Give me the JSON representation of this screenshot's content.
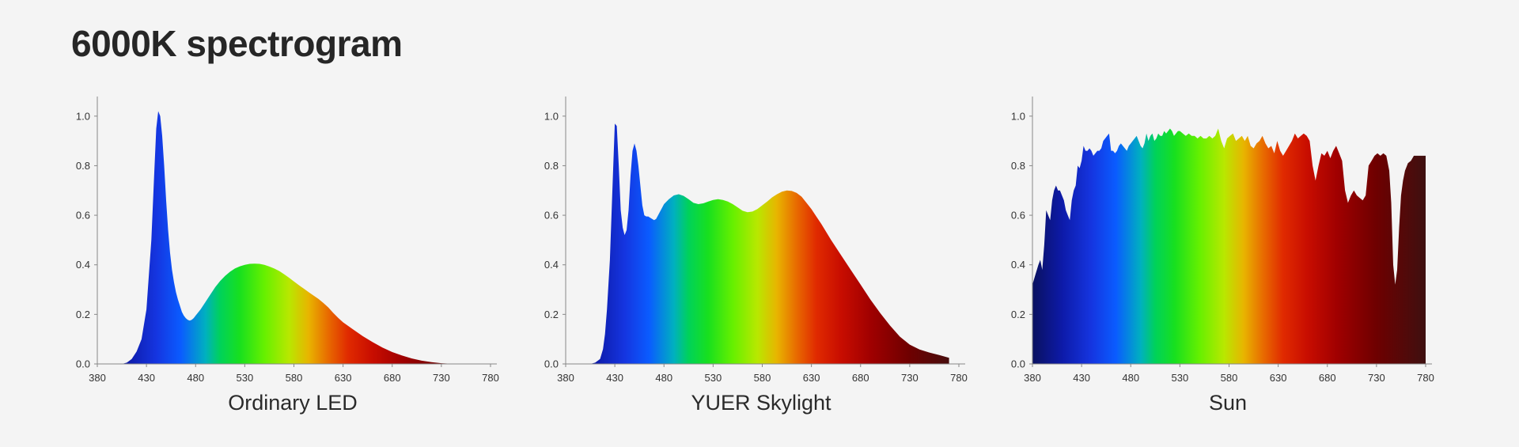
{
  "title": "6000K spectrogram",
  "chart_data": [
    {
      "type": "area",
      "title": "Ordinary LED",
      "xlabel": "",
      "ylabel": "",
      "xlim": [
        380,
        780
      ],
      "ylim": [
        0,
        1.06
      ],
      "xticks": [
        380,
        430,
        480,
        530,
        580,
        630,
        680,
        730,
        780
      ],
      "yticks": [
        0.0,
        0.2,
        0.4,
        0.6,
        0.8,
        1.0
      ],
      "legend": "none",
      "grid": false,
      "x": [
        380,
        405,
        410,
        415,
        420,
        425,
        430,
        435,
        438,
        440,
        442,
        444,
        446,
        448,
        450,
        452,
        454,
        456,
        458,
        460,
        462,
        464,
        466,
        468,
        470,
        472,
        474,
        476,
        478,
        480,
        485,
        490,
        495,
        500,
        505,
        510,
        515,
        520,
        525,
        530,
        535,
        540,
        545,
        550,
        555,
        560,
        565,
        570,
        575,
        580,
        585,
        590,
        595,
        600,
        605,
        610,
        615,
        620,
        625,
        630,
        640,
        650,
        660,
        670,
        680,
        690,
        700,
        710,
        720,
        730,
        740,
        750
      ],
      "y": [
        0,
        0,
        0.005,
        0.02,
        0.05,
        0.1,
        0.22,
        0.5,
        0.78,
        0.95,
        1.02,
        1.0,
        0.92,
        0.8,
        0.66,
        0.54,
        0.45,
        0.38,
        0.33,
        0.29,
        0.26,
        0.235,
        0.21,
        0.195,
        0.185,
        0.178,
        0.175,
        0.178,
        0.185,
        0.195,
        0.22,
        0.25,
        0.28,
        0.31,
        0.335,
        0.355,
        0.372,
        0.385,
        0.394,
        0.4,
        0.404,
        0.405,
        0.404,
        0.4,
        0.393,
        0.385,
        0.375,
        0.362,
        0.348,
        0.333,
        0.318,
        0.304,
        0.29,
        0.276,
        0.262,
        0.246,
        0.228,
        0.206,
        0.186,
        0.168,
        0.14,
        0.112,
        0.088,
        0.066,
        0.048,
        0.034,
        0.022,
        0.013,
        0.007,
        0.003,
        0.001,
        0
      ]
    },
    {
      "type": "area",
      "title": "YUER Skylight",
      "xlabel": "",
      "ylabel": "",
      "xlim": [
        380,
        780
      ],
      "ylim": [
        0,
        1.06
      ],
      "xticks": [
        380,
        430,
        480,
        530,
        580,
        630,
        680,
        730,
        780
      ],
      "yticks": [
        0.0,
        0.2,
        0.4,
        0.6,
        0.8,
        1.0
      ],
      "legend": "none",
      "grid": false,
      "x": [
        380,
        405,
        410,
        415,
        418,
        420,
        422,
        425,
        428,
        430,
        432,
        434,
        436,
        438,
        440,
        442,
        444,
        446,
        448,
        450,
        452,
        454,
        456,
        458,
        460,
        462,
        464,
        466,
        468,
        470,
        472,
        474,
        476,
        478,
        480,
        485,
        490,
        495,
        500,
        505,
        510,
        515,
        520,
        525,
        530,
        535,
        540,
        545,
        550,
        555,
        560,
        565,
        570,
        575,
        580,
        585,
        590,
        595,
        600,
        605,
        610,
        615,
        620,
        625,
        630,
        635,
        640,
        650,
        660,
        670,
        680,
        690,
        700,
        710,
        720,
        730,
        740,
        750,
        760,
        770
      ],
      "y": [
        0,
        0,
        0.005,
        0.02,
        0.06,
        0.12,
        0.22,
        0.42,
        0.75,
        0.97,
        0.96,
        0.8,
        0.62,
        0.55,
        0.52,
        0.54,
        0.62,
        0.76,
        0.86,
        0.89,
        0.86,
        0.8,
        0.72,
        0.64,
        0.6,
        0.595,
        0.595,
        0.59,
        0.585,
        0.58,
        0.585,
        0.6,
        0.615,
        0.63,
        0.645,
        0.665,
        0.68,
        0.685,
        0.678,
        0.665,
        0.65,
        0.645,
        0.648,
        0.655,
        0.662,
        0.665,
        0.662,
        0.655,
        0.645,
        0.632,
        0.618,
        0.612,
        0.615,
        0.625,
        0.64,
        0.655,
        0.672,
        0.685,
        0.695,
        0.7,
        0.698,
        0.69,
        0.675,
        0.65,
        0.625,
        0.595,
        0.565,
        0.5,
        0.44,
        0.38,
        0.32,
        0.26,
        0.205,
        0.155,
        0.11,
        0.078,
        0.058,
        0.046,
        0.036,
        0.025
      ]
    },
    {
      "type": "area",
      "title": "Sun",
      "xlabel": "",
      "ylabel": "",
      "xlim": [
        380,
        780
      ],
      "ylim": [
        0,
        1.06
      ],
      "xticks": [
        380,
        430,
        480,
        530,
        580,
        630,
        680,
        730,
        780
      ],
      "yticks": [
        0.0,
        0.2,
        0.4,
        0.6,
        0.8,
        1.0
      ],
      "legend": "none",
      "grid": false,
      "x": [
        380,
        383,
        386,
        388,
        390,
        392,
        394,
        396,
        398,
        400,
        402,
        404,
        406,
        408,
        410,
        412,
        414,
        416,
        418,
        420,
        422,
        424,
        426,
        428,
        430,
        432,
        434,
        436,
        438,
        440,
        442,
        444,
        446,
        448,
        450,
        452,
        454,
        456,
        458,
        460,
        462,
        464,
        466,
        468,
        470,
        472,
        474,
        476,
        478,
        480,
        482,
        484,
        486,
        488,
        490,
        492,
        494,
        496,
        498,
        500,
        502,
        504,
        506,
        508,
        510,
        512,
        514,
        516,
        518,
        520,
        522,
        524,
        526,
        528,
        530,
        533,
        536,
        539,
        542,
        545,
        548,
        551,
        554,
        557,
        560,
        563,
        566,
        569,
        572,
        575,
        578,
        581,
        584,
        587,
        590,
        593,
        596,
        599,
        602,
        605,
        608,
        611,
        614,
        617,
        620,
        623,
        626,
        629,
        632,
        635,
        638,
        641,
        644,
        647,
        650,
        653,
        656,
        659,
        662,
        665,
        668,
        671,
        674,
        677,
        680,
        683,
        686,
        689,
        692,
        695,
        698,
        701,
        704,
        707,
        710,
        713,
        716,
        719,
        722,
        725,
        728,
        731,
        734,
        737,
        740,
        743,
        745,
        747,
        749,
        751,
        753,
        755,
        757,
        759,
        762,
        765,
        768,
        771,
        774,
        777,
        780
      ],
      "y": [
        0.32,
        0.36,
        0.4,
        0.42,
        0.38,
        0.48,
        0.62,
        0.6,
        0.58,
        0.66,
        0.7,
        0.72,
        0.7,
        0.7,
        0.68,
        0.66,
        0.62,
        0.6,
        0.58,
        0.66,
        0.7,
        0.72,
        0.8,
        0.79,
        0.82,
        0.88,
        0.86,
        0.86,
        0.87,
        0.86,
        0.84,
        0.85,
        0.86,
        0.86,
        0.87,
        0.9,
        0.91,
        0.92,
        0.93,
        0.86,
        0.86,
        0.85,
        0.86,
        0.88,
        0.89,
        0.88,
        0.87,
        0.86,
        0.88,
        0.89,
        0.9,
        0.91,
        0.92,
        0.9,
        0.88,
        0.87,
        0.89,
        0.93,
        0.9,
        0.92,
        0.93,
        0.9,
        0.91,
        0.93,
        0.92,
        0.92,
        0.94,
        0.93,
        0.94,
        0.95,
        0.94,
        0.92,
        0.93,
        0.94,
        0.94,
        0.93,
        0.92,
        0.93,
        0.92,
        0.92,
        0.91,
        0.92,
        0.91,
        0.91,
        0.92,
        0.91,
        0.92,
        0.95,
        0.9,
        0.87,
        0.91,
        0.92,
        0.93,
        0.9,
        0.91,
        0.92,
        0.9,
        0.92,
        0.88,
        0.87,
        0.89,
        0.9,
        0.92,
        0.89,
        0.87,
        0.88,
        0.85,
        0.9,
        0.86,
        0.84,
        0.86,
        0.88,
        0.9,
        0.93,
        0.91,
        0.92,
        0.93,
        0.92,
        0.9,
        0.8,
        0.74,
        0.8,
        0.85,
        0.84,
        0.86,
        0.83,
        0.86,
        0.88,
        0.85,
        0.82,
        0.7,
        0.65,
        0.68,
        0.7,
        0.68,
        0.67,
        0.66,
        0.68,
        0.8,
        0.82,
        0.84,
        0.85,
        0.84,
        0.85,
        0.84,
        0.78,
        0.65,
        0.4,
        0.32,
        0.38,
        0.55,
        0.68,
        0.74,
        0.78,
        0.81,
        0.82,
        0.84,
        0.84,
        0.84,
        0.84,
        0.84
      ]
    }
  ]
}
